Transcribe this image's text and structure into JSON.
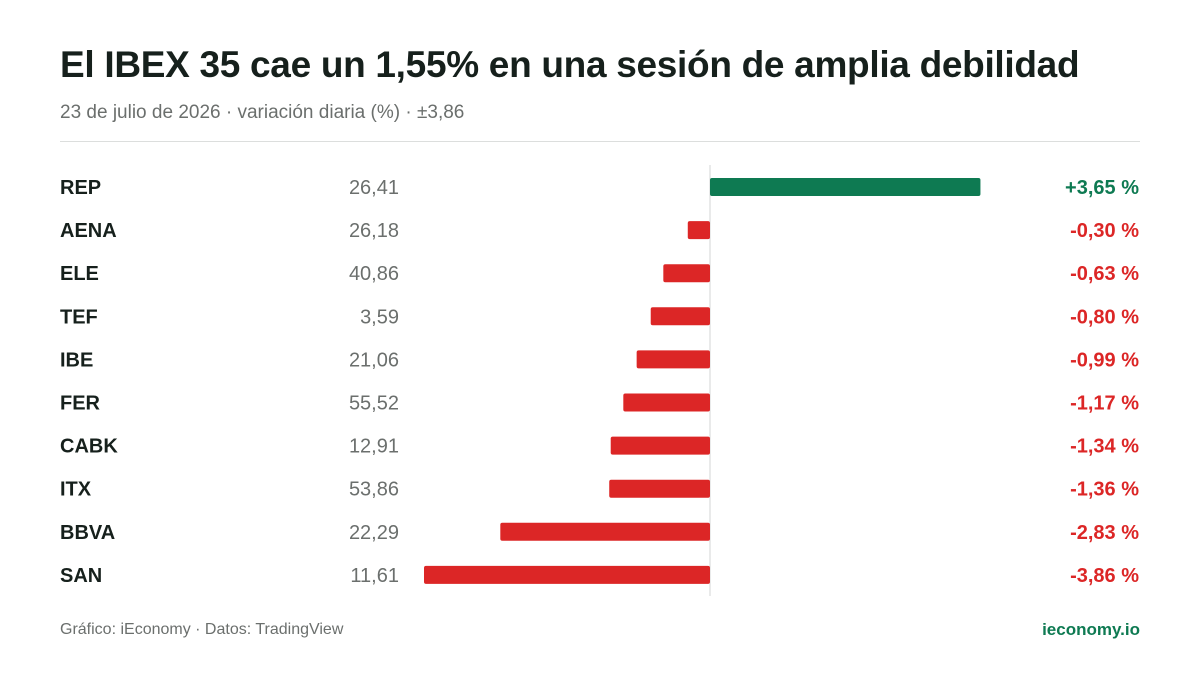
{
  "header": {
    "title": "El IBEX 35 cae un 1,55% en una sesión de amplia debilidad",
    "subtitle": "23 de julio de 2026 · variación diaria (%) · ±3,86"
  },
  "footer": {
    "credit": "Gráfico: iEconomy · Datos: TradingView",
    "brand": "ieconomy.io"
  },
  "colors": {
    "positive": "#0e7a52",
    "negative": "#dc2626",
    "label": "#16201c",
    "price": "#6b6f6d",
    "axis": "#e2e4e3"
  },
  "chart_data": {
    "type": "bar",
    "orientation": "horizontal",
    "xlim": [
      -3.86,
      3.86
    ],
    "grid": false,
    "legend": "none",
    "categories": [
      "REP",
      "AENA",
      "ELE",
      "TEF",
      "IBE",
      "FER",
      "CABK",
      "ITX",
      "BBVA",
      "SAN"
    ],
    "prices": [
      "26,41",
      "26,18",
      "40,86",
      "3,59",
      "21,06",
      "55,52",
      "12,91",
      "53,86",
      "22,29",
      "11,61"
    ],
    "values": [
      3.65,
      -0.3,
      -0.63,
      -0.8,
      -0.99,
      -1.17,
      -1.34,
      -1.36,
      -2.83,
      -3.86
    ],
    "value_labels": [
      "+3,65 %",
      "-0,30 %",
      "-0,63 %",
      "-0,80 %",
      "-0,99 %",
      "-1,17 %",
      "-1,34 %",
      "-1,36 %",
      "-2,83 %",
      "-3,86 %"
    ]
  }
}
